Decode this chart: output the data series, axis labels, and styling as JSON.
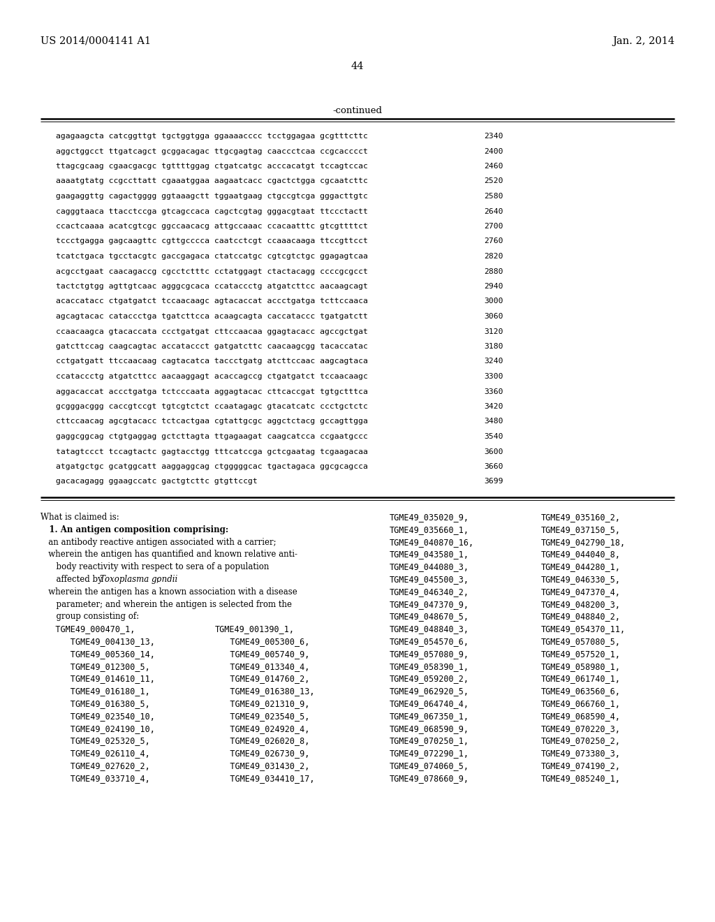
{
  "header_left": "US 2014/0004141 A1",
  "header_right": "Jan. 2, 2014",
  "page_number": "44",
  "continued_label": "-continued",
  "background_color": "#ffffff",
  "text_color": "#000000",
  "sequence_lines": [
    [
      "agagaagcta catcggttgt tgctggtgga ggaaaacccc tcctggagaa gcgtttcttc",
      "2340"
    ],
    [
      "aggctggcct ttgatcagct gcggacagac ttgcgagtag caaccctcaa ccgcacccct",
      "2400"
    ],
    [
      "ttagcgcaag cgaacgacgc tgttttggag ctgatcatgc acccacatgt tccagtccac",
      "2460"
    ],
    [
      "aaaatgtatg ccgccttatt cgaaatggaa aagaatcacc cgactctgga cgcaatcttc",
      "2520"
    ],
    [
      "gaagaggttg cagactgggg ggtaaagctt tggaatgaag ctgccgtcga gggacttgtc",
      "2580"
    ],
    [
      "cagggtaaca ttacctccga gtcagccaca cagctcgtag gggacgtaat ttccctactt",
      "2640"
    ],
    [
      "ccactcaaaa acatcgtcgc ggccaacacg attgccaaac ccacaatttc gtcgttttct",
      "2700"
    ],
    [
      "tccctgagga gagcaagttc cgttgcccca caatcctcgt ccaaacaaga ttccgttcct",
      "2760"
    ],
    [
      "tcatctgaca tgcctacgtc gaccgagaca ctatccatgc cgtcgtctgc ggagagtcaa",
      "2820"
    ],
    [
      "acgcctgaat caacagaccg cgcctctttc cctatggagt ctactacagg ccccgcgcct",
      "2880"
    ],
    [
      "tactctgtgg agttgtcaac agggcgcaca ccataccctg atgatcttcc aacaagcagt",
      "2940"
    ],
    [
      "acaccatacc ctgatgatct tccaacaagc agtacaccat accctgatga tcttccaaca",
      "3000"
    ],
    [
      "agcagtacac cataccctga tgatcttcca acaagcagta caccataccc tgatgatctt",
      "3060"
    ],
    [
      "ccaacaagca gtacaccata ccctgatgat cttccaacaa ggagtacacc agccgctgat",
      "3120"
    ],
    [
      "gatcttccag caagcagtac accataccct gatgatcttc caacaagcgg tacaccatac",
      "3180"
    ],
    [
      "cctgatgatt ttccaacaag cagtacatca taccctgatg atcttccaac aagcagtaca",
      "3240"
    ],
    [
      "ccataccctg atgatcttcc aacaaggagt acaccagccg ctgatgatct tccaacaagc",
      "3300"
    ],
    [
      "aggacaccat accctgatga tctcccaata aggagtacac cttcaccgat tgtgctttca",
      "3360"
    ],
    [
      "gcgggacggg caccgtccgt tgtcgtctct ccaatagagc gtacatcatc ccctgctctc",
      "3420"
    ],
    [
      "cttccaacag agcgtacacc tctcactgaa cgtattgcgc aggctctacg gccagttgga",
      "3480"
    ],
    [
      "gaggcggcag ctgtgaggag gctcttagta ttgagaagat caagcatcca ccgaatgccc",
      "3540"
    ],
    [
      "tatagtccct tccagtactc gagtacctgg tttcatccga gctcgaatag tcgaagacaa",
      "3600"
    ],
    [
      "atgatgctgc gcatggcatt aaggaggcag ctgggggcac tgactagaca ggcgcagcca",
      "3660"
    ],
    [
      "gacacagagg ggaagccatc gactgtcttc gtgttccgt",
      "3699"
    ]
  ],
  "claims_left_col1": [
    [
      "normal",
      "What is claimed is:"
    ],
    [
      "bold",
      "   1. An antigen composition comprising:"
    ],
    [
      "normal",
      "   an antibody reactive antigen associated with a carrier;"
    ],
    [
      "normal",
      "   wherein the antigen has quantified and known relative anti-"
    ],
    [
      "normal",
      "      body reactivity with respect to sera of a population"
    ],
    [
      "italic_inline",
      "      affected by *Toxoplasma gondii*;"
    ],
    [
      "normal",
      "   wherein the antigen has a known association with a disease"
    ],
    [
      "normal",
      "      parameter; and wherein the antigen is selected from the"
    ],
    [
      "normal",
      "      group consisting of:"
    ],
    [
      "mono",
      "   TGME49_000470_1,"
    ],
    [
      "mono",
      "      TGME49_004130_13,"
    ],
    [
      "mono",
      "      TGME49_005360_14,"
    ],
    [
      "mono",
      "      TGME49_012300_5,"
    ],
    [
      "mono",
      "      TGME49_014610_11,"
    ],
    [
      "mono",
      "      TGME49_016180_1,"
    ],
    [
      "mono",
      "      TGME49_016380_5,"
    ],
    [
      "mono",
      "      TGME49_023540_10,"
    ],
    [
      "mono",
      "      TGME49_024190_10,"
    ],
    [
      "mono",
      "      TGME49_025320_5,"
    ],
    [
      "mono",
      "      TGME49_026110_4,"
    ],
    [
      "mono",
      "      TGME49_027620_2,"
    ],
    [
      "mono",
      "      TGME49_033710_4,"
    ]
  ],
  "claims_col2_items": [
    "TGME49_001390_1,",
    "   TGME49_005300_6,",
    "   TGME49_005740_9,",
    "   TGME49_013340_4,",
    "   TGME49_014760_2,",
    "   TGME49_016380_13,",
    "   TGME49_021310_9,",
    "   TGME49_023540_5,",
    "   TGME49_024920_4,",
    "   TGME49_026020_8,",
    "   TGME49_026730_9,",
    "   TGME49_031430_2,",
    "   TGME49_034410_17,"
  ],
  "claims_col3_items": [
    "TGME49_035020_9,",
    "TGME49_035660_1,",
    "TGME49_040870_16,",
    "TGME49_043580_1,",
    "TGME49_044080_3,",
    "TGME49_045500_3,",
    "TGME49_046340_2,",
    "TGME49_047370_9,",
    "TGME49_048670_5,",
    "TGME49_048840_3,",
    "TGME49_054570_6,",
    "TGME49_057080_9,",
    "TGME49_058390_1,",
    "TGME49_059200_2,",
    "TGME49_062920_5,",
    "TGME49_064740_4,",
    "TGME49_067350_1,",
    "TGME49_068590_9,",
    "TGME49_070250_1,",
    "TGME49_072290_1,",
    "TGME49_074060_5,",
    "TGME49_078660_9,"
  ],
  "claims_col4_items": [
    "TGME49_035160_2,",
    "TGME49_037150_5,",
    "TGME49_042790_18,",
    "TGME49_044040_8,",
    "TGME49_044280_1,",
    "TGME49_046330_5,",
    "TGME49_047370_4,",
    "TGME49_048200_3,",
    "TGME49_048840_2,",
    "TGME49_054370_11,",
    "TGME49_057080_5,",
    "TGME49_057520_1,",
    "TGME49_058980_1,",
    "TGME49_061740_1,",
    "TGME49_063560_6,",
    "TGME49_066760_1,",
    "TGME49_068590_4,",
    "TGME49_070220_3,",
    "TGME49_070250_2,",
    "TGME49_073380_3,",
    "TGME49_074190_2,",
    "TGME49_085240_1,"
  ]
}
